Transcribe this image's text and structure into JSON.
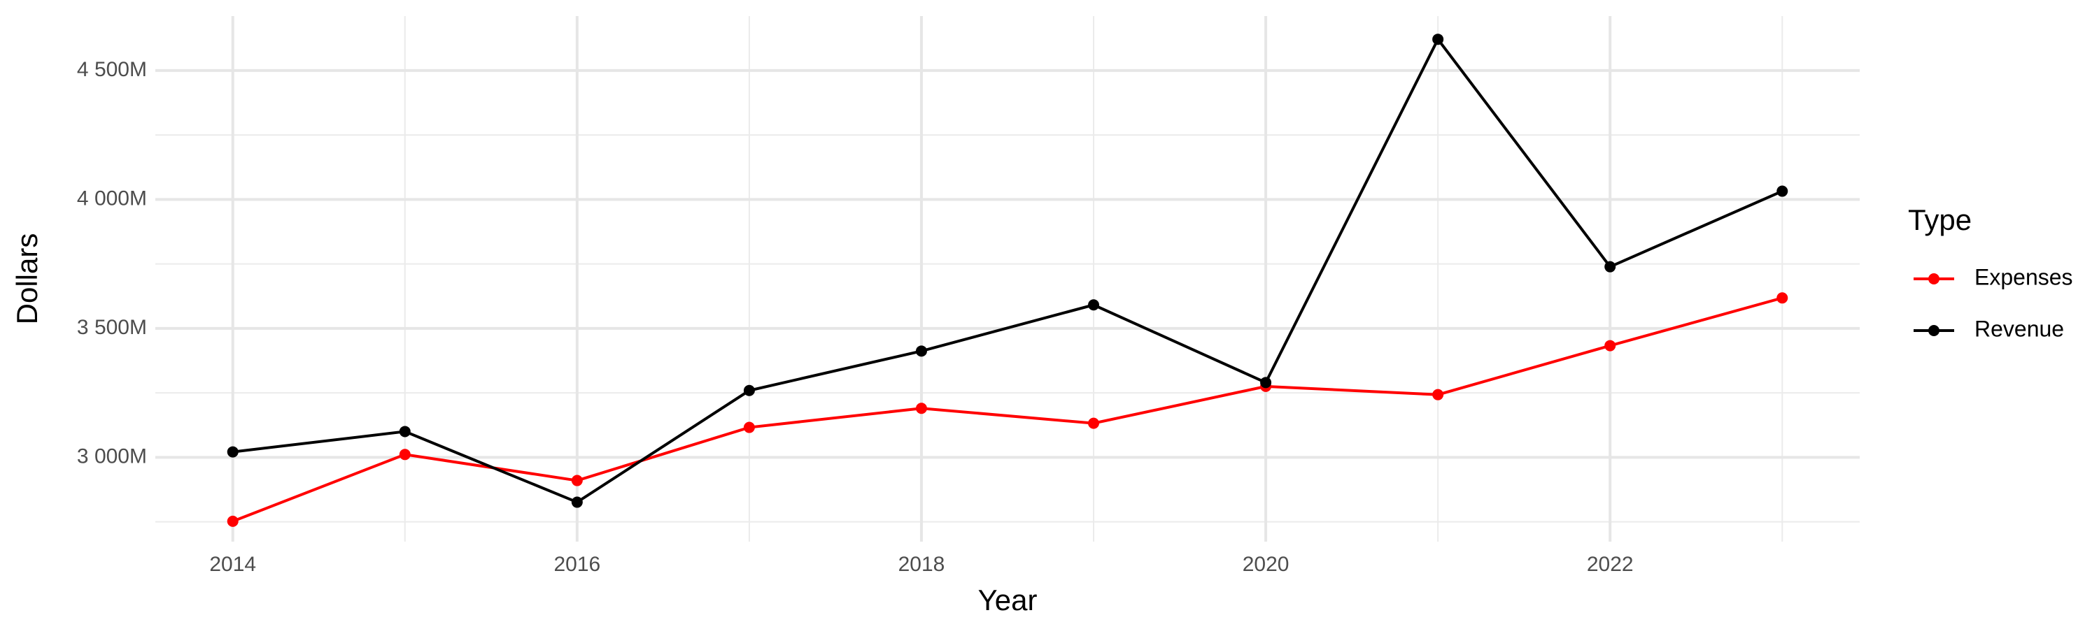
{
  "chart_data": {
    "type": "line",
    "x_label": "Year",
    "y_label": "Dollars",
    "legend_title": "Type",
    "x": [
      2014,
      2015,
      2016,
      2017,
      2018,
      2019,
      2020,
      2021,
      2022,
      2023
    ],
    "series": [
      {
        "name": "Expenses",
        "color": "#ff0000",
        "values": [
          2752,
          3011,
          2910,
          3116,
          3190,
          3132,
          3275,
          3243,
          3433,
          3618
        ]
      },
      {
        "name": "Revenue",
        "color": "#000000",
        "values": [
          3021,
          3100,
          2826,
          3259,
          3412,
          3591,
          3290,
          4621,
          3739,
          4032
        ]
      }
    ],
    "xlim": [
      2013.55,
      2023.45
    ],
    "xticks": [
      2014,
      2016,
      2018,
      2020,
      2022
    ],
    "minor_xticks": [
      2015,
      2017,
      2019,
      2021,
      2023
    ],
    "ylim": [
      2673,
      4711
    ],
    "yticks": [
      {
        "value": 3000,
        "label": "3 000M"
      },
      {
        "value": 3500,
        "label": "3 500M"
      },
      {
        "value": 4000,
        "label": "4 000M"
      },
      {
        "value": 4500,
        "label": "4 500M"
      }
    ],
    "minor_yticks": [
      2750,
      3250,
      3750,
      4250
    ],
    "grid": true,
    "legend_position": "right"
  }
}
